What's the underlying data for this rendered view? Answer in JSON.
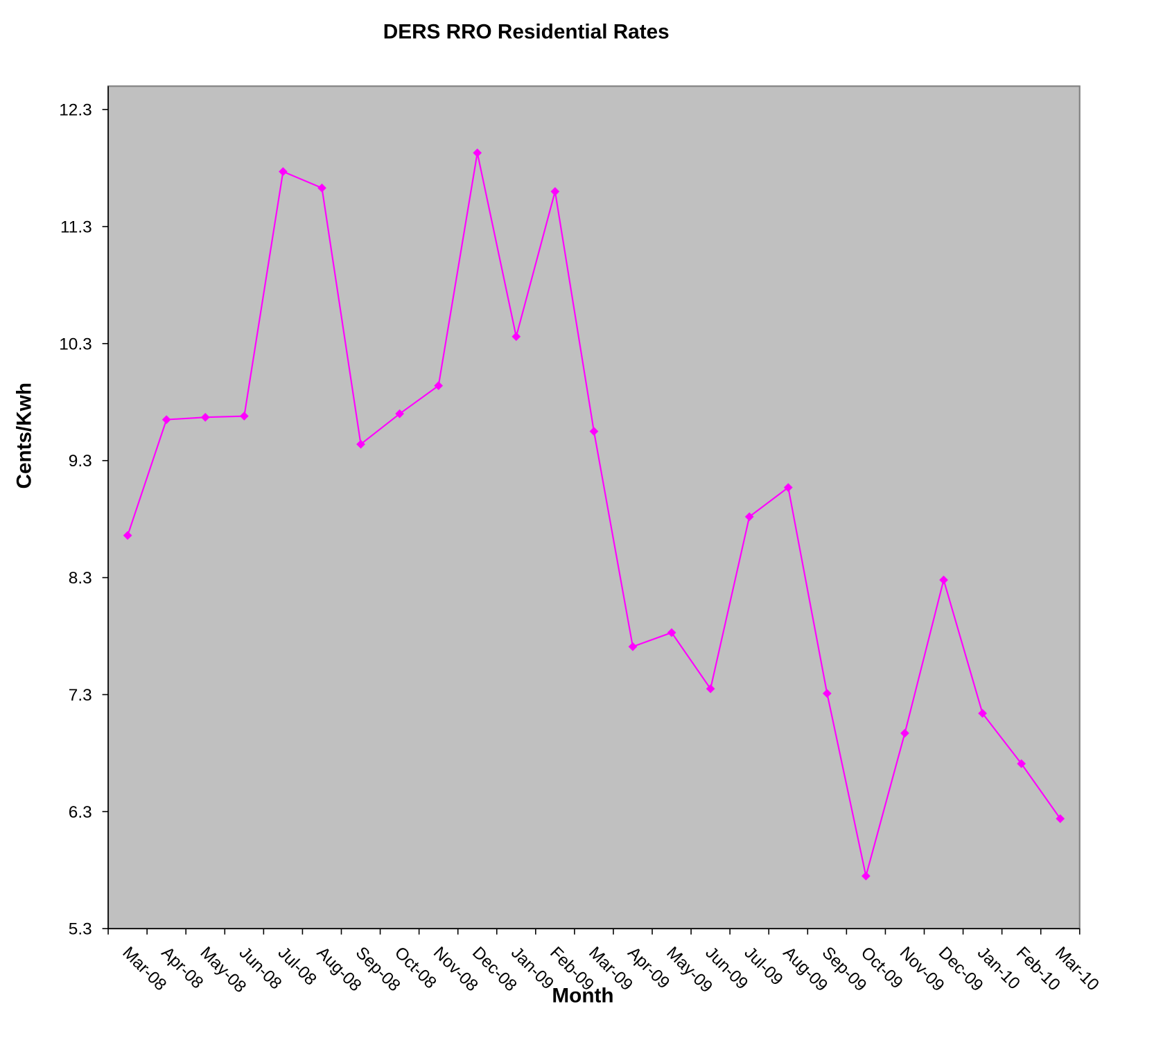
{
  "chart_data": {
    "type": "line",
    "title": "DERS RRO Residential Rates",
    "x_label": "Month",
    "y_label": "Cents/Kwh",
    "categories": [
      "Mar-08",
      "Apr-08",
      "May-08",
      "Jun-08",
      "Jul-08",
      "Aug-08",
      "Sep-08",
      "Oct-08",
      "Nov-08",
      "Dec-08",
      "Jan-09",
      "Feb-09",
      "Mar-09",
      "Apr-09",
      "May-09",
      "Jun-09",
      "Jul-09",
      "Aug-09",
      "Sep-09",
      "Oct-09",
      "Nov-09",
      "Dec-09",
      "Jan-10",
      "Feb-10",
      "Mar-10"
    ],
    "series": [
      {
        "color": "#ff00ff",
        "values": [
          8.66,
          9.65,
          9.67,
          9.68,
          11.77,
          11.63,
          9.44,
          9.7,
          9.94,
          11.93,
          10.36,
          11.6,
          9.55,
          7.71,
          7.83,
          7.35,
          8.82,
          9.07,
          7.31,
          5.75,
          6.97,
          8.28,
          7.14,
          6.71,
          6.24
        ]
      }
    ],
    "ylim": [
      5.3,
      12.5
    ],
    "yticks": [
      5.3,
      6.3,
      7.3,
      8.3,
      9.3,
      10.3,
      11.3,
      12.3
    ],
    "grid": false,
    "plot_background": "#c0c0c0"
  }
}
